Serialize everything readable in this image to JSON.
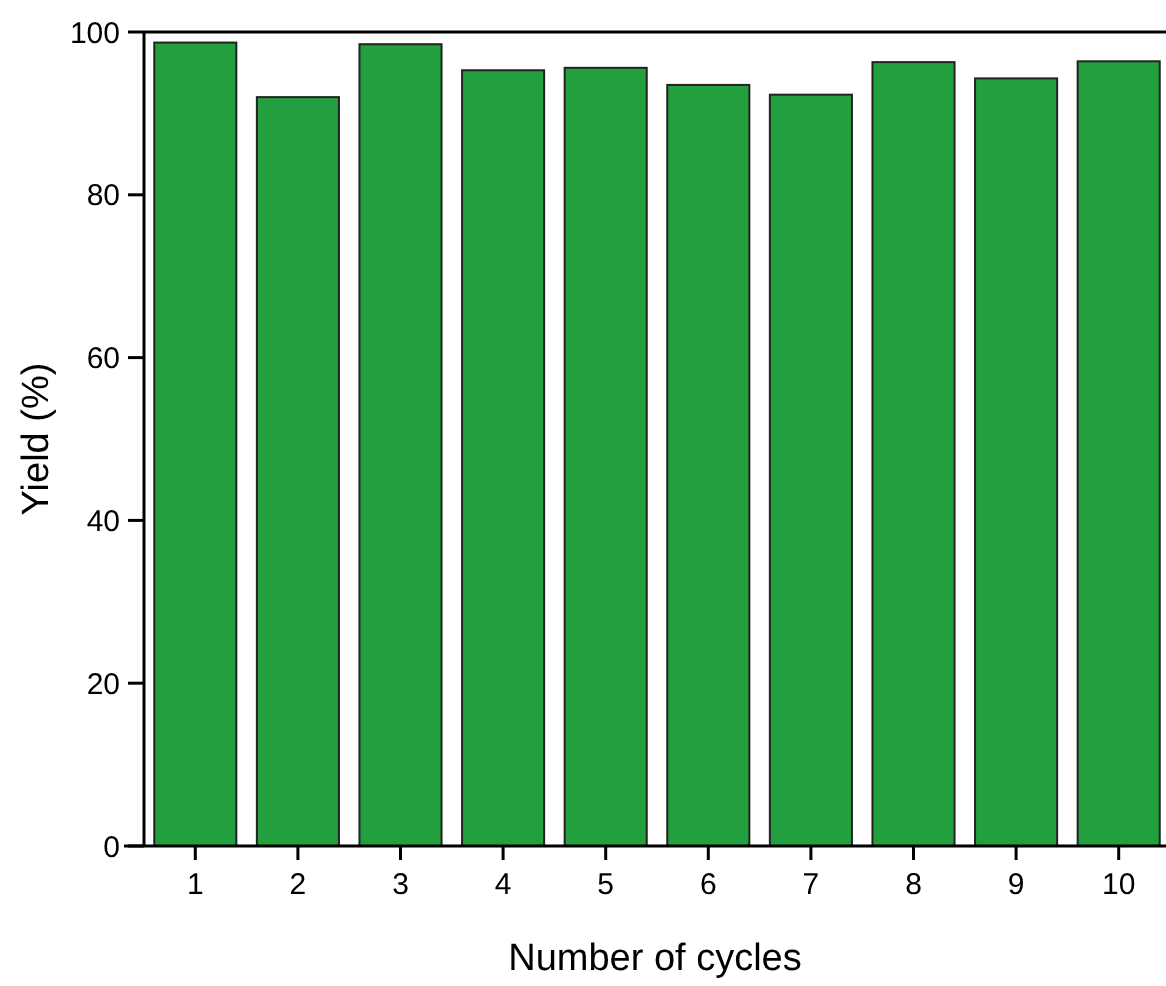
{
  "chart_data": {
    "type": "bar",
    "xlabel": "Number of cycles",
    "ylabel": "Yield (%)",
    "categories": [
      "1",
      "2",
      "3",
      "4",
      "5",
      "6",
      "7",
      "8",
      "9",
      "10"
    ],
    "values": [
      98.7,
      92.0,
      98.5,
      95.3,
      95.6,
      93.5,
      92.3,
      96.3,
      94.3,
      96.4
    ],
    "color": "#22a040",
    "ylim": [
      0,
      100
    ],
    "yticks": [
      0,
      20,
      40,
      60,
      80,
      100
    ],
    "grid": false
  }
}
